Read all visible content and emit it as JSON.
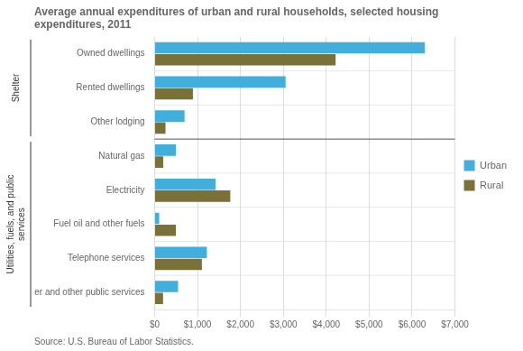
{
  "chart_data": {
    "type": "bar",
    "orientation": "horizontal",
    "title": "Average annual expenditures of urban and rural households, selected housing\nexpenditures, 2011",
    "annotations": [
      "Source: U.S. Bureau of Labor Statistics."
    ],
    "categories": [
      "Owned dwellings",
      "Rented dwellings",
      "Other lodging",
      "Natural gas",
      "Electricity",
      "Fuel oil and other fuels",
      "Telephone services",
      "Water and other public services"
    ],
    "groups": [
      {
        "name": "Shelter",
        "categories": [
          "Owned dwellings",
          "Rented dwellings",
          "Other lodging"
        ]
      },
      {
        "name": "Utilities, fuels, and public\nservices",
        "categories": [
          "Natural gas",
          "Electricity",
          "Fuel oil and other fuels",
          "Telephone services",
          "Water and other public services"
        ]
      }
    ],
    "series": [
      {
        "name": "Urban",
        "color": "#41AEDB",
        "values": [
          6296,
          3052,
          697,
          497,
          1419,
          106,
          1217,
          547
        ]
      },
      {
        "name": "Rural",
        "color": "#7A7139",
        "values": [
          4218,
          892,
          253,
          201,
          1763,
          496,
          1101,
          196
        ]
      }
    ],
    "xlim": [
      0,
      7000
    ],
    "xticks": [
      {
        "value": 0,
        "label": "$0"
      },
      {
        "value": 1000,
        "label": "$1,000"
      },
      {
        "value": 2000,
        "label": "$2,000"
      },
      {
        "value": 3000,
        "label": "$3,000"
      },
      {
        "value": 4000,
        "label": "$4,000"
      },
      {
        "value": 5000,
        "label": "$5,000"
      },
      {
        "value": 6000,
        "label": "$6,000"
      },
      {
        "value": 7000,
        "label": "$7,000"
      }
    ],
    "grid": true,
    "legend": "right"
  }
}
